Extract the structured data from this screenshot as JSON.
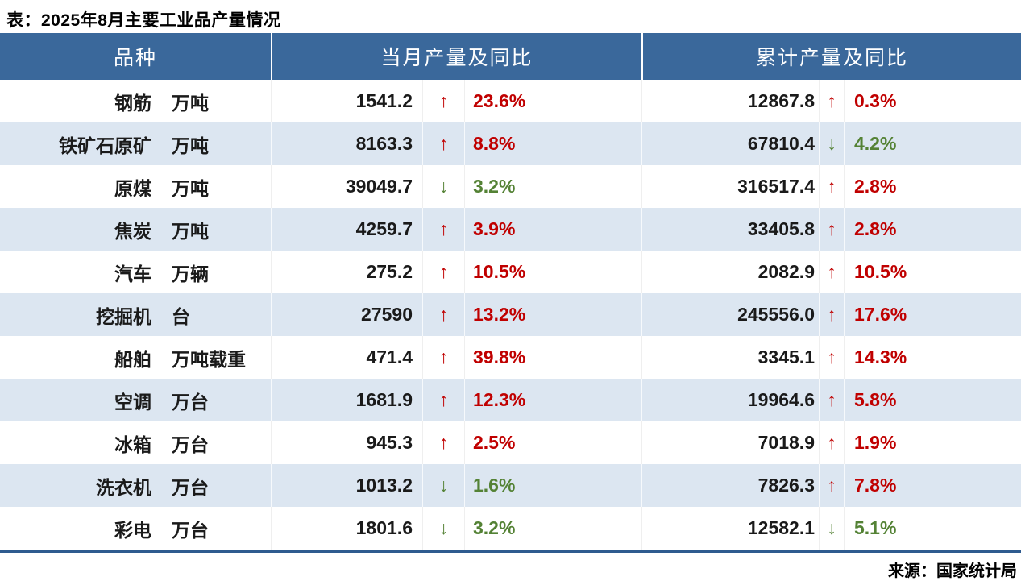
{
  "chart_data": {
    "type": "table",
    "title": "表：2025年8月主要工业品产量情况",
    "source": "来源：国家统计局",
    "columns": [
      "品种",
      "当月产量及同比",
      "累计产量及同比"
    ],
    "rows": [
      {
        "name": "钢筋",
        "unit": "万吨",
        "month": {
          "value": "1541.2",
          "dir": "up",
          "pct": "23.6%"
        },
        "cum": {
          "value": "12867.8",
          "dir": "up",
          "pct": "0.3%"
        }
      },
      {
        "name": "铁矿石原矿",
        "unit": "万吨",
        "month": {
          "value": "8163.3",
          "dir": "up",
          "pct": "8.8%"
        },
        "cum": {
          "value": "67810.4",
          "dir": "down",
          "pct": "4.2%"
        }
      },
      {
        "name": "原煤",
        "unit": "万吨",
        "month": {
          "value": "39049.7",
          "dir": "down",
          "pct": "3.2%"
        },
        "cum": {
          "value": "316517.4",
          "dir": "up",
          "pct": "2.8%"
        }
      },
      {
        "name": "焦炭",
        "unit": "万吨",
        "month": {
          "value": "4259.7",
          "dir": "up",
          "pct": "3.9%"
        },
        "cum": {
          "value": "33405.8",
          "dir": "up",
          "pct": "2.8%"
        }
      },
      {
        "name": "汽车",
        "unit": "万辆",
        "month": {
          "value": "275.2",
          "dir": "up",
          "pct": "10.5%"
        },
        "cum": {
          "value": "2082.9",
          "dir": "up",
          "pct": "10.5%"
        }
      },
      {
        "name": "挖掘机",
        "unit": "台",
        "month": {
          "value": "27590",
          "dir": "up",
          "pct": "13.2%"
        },
        "cum": {
          "value": "245556.0",
          "dir": "up",
          "pct": "17.6%"
        }
      },
      {
        "name": "船舶",
        "unit": "万吨载重",
        "month": {
          "value": "471.4",
          "dir": "up",
          "pct": "39.8%"
        },
        "cum": {
          "value": "3345.1",
          "dir": "up",
          "pct": "14.3%"
        }
      },
      {
        "name": "空调",
        "unit": "万台",
        "month": {
          "value": "1681.9",
          "dir": "up",
          "pct": "12.3%"
        },
        "cum": {
          "value": "19964.6",
          "dir": "up",
          "pct": "5.8%"
        }
      },
      {
        "name": "冰箱",
        "unit": "万台",
        "month": {
          "value": "945.3",
          "dir": "up",
          "pct": "2.5%"
        },
        "cum": {
          "value": "7018.9",
          "dir": "up",
          "pct": "1.9%"
        }
      },
      {
        "name": "洗衣机",
        "unit": "万台",
        "month": {
          "value": "1013.2",
          "dir": "down",
          "pct": "1.6%"
        },
        "cum": {
          "value": "7826.3",
          "dir": "up",
          "pct": "7.8%"
        }
      },
      {
        "name": "彩电",
        "unit": "万台",
        "month": {
          "value": "1801.6",
          "dir": "down",
          "pct": "3.2%"
        },
        "cum": {
          "value": "12582.1",
          "dir": "down",
          "pct": "5.1%"
        }
      }
    ]
  },
  "icons": {
    "up": "↑",
    "down": "↓"
  },
  "colors": {
    "header_bg": "#3A689B",
    "row_alt_bg": "#DCE6F1",
    "up_red": "#C00000",
    "down_green": "#548235",
    "bottom_rule": "#2F5B8F"
  }
}
